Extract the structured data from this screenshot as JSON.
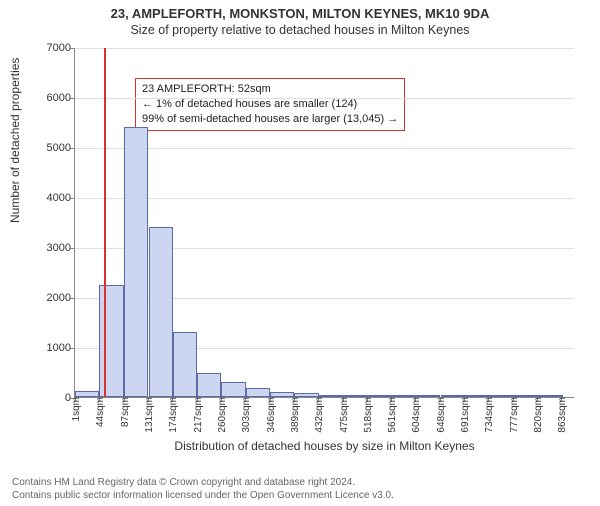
{
  "title": "23, AMPLEFORTH, MONKSTON, MILTON KEYNES, MK10 9DA",
  "subtitle": "Size of property relative to detached houses in Milton Keynes",
  "ylabel": "Number of detached properties",
  "xlabel": "Distribution of detached houses by size in Milton Keynes",
  "footer_line1": "Contains HM Land Registry data © Crown copyright and database right 2024.",
  "footer_line2": "Contains public sector information licensed under the Open Government Licence v3.0.",
  "annotation": {
    "line1": "23 AMPLEFORTH: 52sqm",
    "line2": "← 1% of detached houses are smaller (124)",
    "line3": "99% of semi-detached houses are larger (13,045) →"
  },
  "chart": {
    "type": "histogram",
    "ylim": [
      0,
      7000
    ],
    "yticks": [
      0,
      1000,
      2000,
      3000,
      4000,
      5000,
      6000,
      7000
    ],
    "xticks_labels": [
      "1sqm",
      "44sqm",
      "87sqm",
      "131sqm",
      "174sqm",
      "217sqm",
      "260sqm",
      "303sqm",
      "346sqm",
      "389sqm",
      "432sqm",
      "475sqm",
      "518sqm",
      "561sqm",
      "604sqm",
      "648sqm",
      "691sqm",
      "734sqm",
      "777sqm",
      "820sqm",
      "863sqm"
    ],
    "x_min": 1,
    "x_max": 885,
    "bin_width_sqm": 43,
    "bar_fill": "#cdd6f0",
    "bar_stroke": "#5b6aa8",
    "grid_color": "#e0e0e0",
    "marker_x_sqm": 52,
    "marker_color": "#d93030",
    "bins": [
      {
        "x": 1,
        "count": 124
      },
      {
        "x": 44,
        "count": 2250
      },
      {
        "x": 87,
        "count": 5400
      },
      {
        "x": 131,
        "count": 3400
      },
      {
        "x": 174,
        "count": 1300
      },
      {
        "x": 217,
        "count": 480
      },
      {
        "x": 260,
        "count": 300
      },
      {
        "x": 303,
        "count": 180
      },
      {
        "x": 346,
        "count": 100
      },
      {
        "x": 389,
        "count": 80
      },
      {
        "x": 432,
        "count": 30
      },
      {
        "x": 475,
        "count": 20
      },
      {
        "x": 518,
        "count": 10
      },
      {
        "x": 561,
        "count": 10
      },
      {
        "x": 604,
        "count": 5
      },
      {
        "x": 648,
        "count": 5
      },
      {
        "x": 691,
        "count": 3
      },
      {
        "x": 734,
        "count": 2
      },
      {
        "x": 777,
        "count": 2
      },
      {
        "x": 820,
        "count": 1
      }
    ]
  }
}
